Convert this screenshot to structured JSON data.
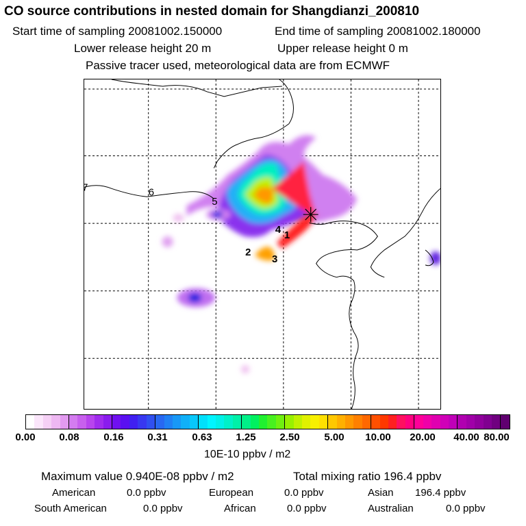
{
  "header": {
    "title": "CO  source contributions in nested domain for Shangdianzi_200810",
    "start_label": "Start time of sampling 20081002.150000",
    "end_label": "End time of sampling 20081002.180000",
    "lower_label": "Lower release height   20 m",
    "upper_label": "Upper release height    0 m",
    "tracer_note": "Passive tracer used, meteorological data are from ECMWF"
  },
  "map": {
    "labels": [
      "7",
      "6",
      "5",
      "4",
      "1",
      "2",
      "3"
    ],
    "station_marker": "star-icon"
  },
  "colorbar": {
    "ticks": [
      "0.00",
      "0.08",
      "0.16",
      "0.31",
      "0.63",
      "1.25",
      "2.50",
      "5.00",
      "10.00",
      "20.00",
      "40.00",
      "80.00"
    ],
    "unit": "10E-10 ppbv / m2",
    "colors": [
      "#ffffff",
      "#fbe6fb",
      "#f5d0f5",
      "#eeb8f2",
      "#e29af0",
      "#d47cf0",
      "#c860ee",
      "#b844ee",
      "#a02cee",
      "#8a1cee",
      "#7010f0",
      "#5a10f0",
      "#4020f0",
      "#3838f0",
      "#3050f0",
      "#2868f2",
      "#2080f4",
      "#1898f6",
      "#10b0f8",
      "#08c8fa",
      "#00e0fc",
      "#00f4ff",
      "#00f0e8",
      "#00f0c8",
      "#00f0a8",
      "#00f088",
      "#00f060",
      "#20f030",
      "#48f020",
      "#70f010",
      "#98f000",
      "#c0f000",
      "#e0f000",
      "#f8f000",
      "#ffe000",
      "#ffc800",
      "#ffb000",
      "#ff9800",
      "#ff8000",
      "#ff6800",
      "#ff5000",
      "#ff3800",
      "#ff2020",
      "#ff1060",
      "#ff0080",
      "#ff0098",
      "#f000a8",
      "#e000b0",
      "#d000b8",
      "#c000b8",
      "#b000b0",
      "#a000a8",
      "#90009c",
      "#800090",
      "#700080",
      "#600070"
    ]
  },
  "summary": {
    "max_label": "Maximum value  0.940E-08 ppbv / m2",
    "total_label": "Total mixing ratio      196.4 ppbv",
    "american": "American",
    "american_val": "0.0 ppbv",
    "european": "European",
    "european_val": "0.0 ppbv",
    "asian": "Asian",
    "asian_val": "196.4 ppbv",
    "south_american": "South American",
    "south_american_val": "0.0 ppbv",
    "african": "African",
    "african_val": "0.0 ppbv",
    "australian": "Australian",
    "australian_val": "0.0 ppbv"
  }
}
